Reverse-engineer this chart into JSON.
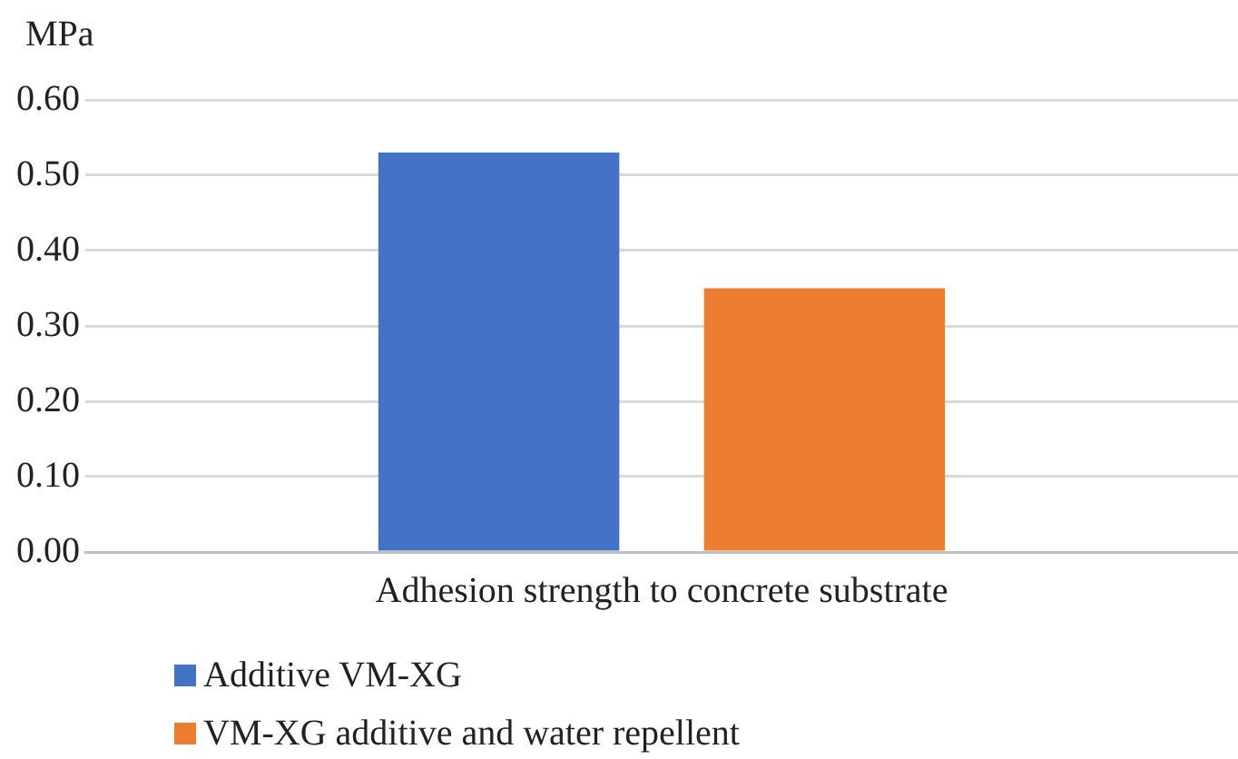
{
  "chart_data": {
    "type": "bar",
    "ylabel": "MPa",
    "categories": [
      "Adhesion strength to concrete substrate"
    ],
    "series": [
      {
        "name": "Additive VM-XG",
        "color": "#4472c4",
        "values": [
          0.53
        ]
      },
      {
        "name": "VM-XG additive and water repellent",
        "color": "#ed7d31",
        "values": [
          0.35
        ]
      }
    ],
    "ylim": [
      0,
      0.6
    ],
    "yticks": [
      {
        "value": 0,
        "label": "0.00"
      },
      {
        "value": 0.1,
        "label": "0.10"
      },
      {
        "value": 0.2,
        "label": "0.20"
      },
      {
        "value": 0.3,
        "label": "0.30"
      },
      {
        "value": 0.4,
        "label": "0.40"
      },
      {
        "value": 0.5,
        "label": "0.50"
      },
      {
        "value": 0.6,
        "label": "0.60"
      }
    ],
    "grid": "y",
    "legend": "bottom"
  }
}
